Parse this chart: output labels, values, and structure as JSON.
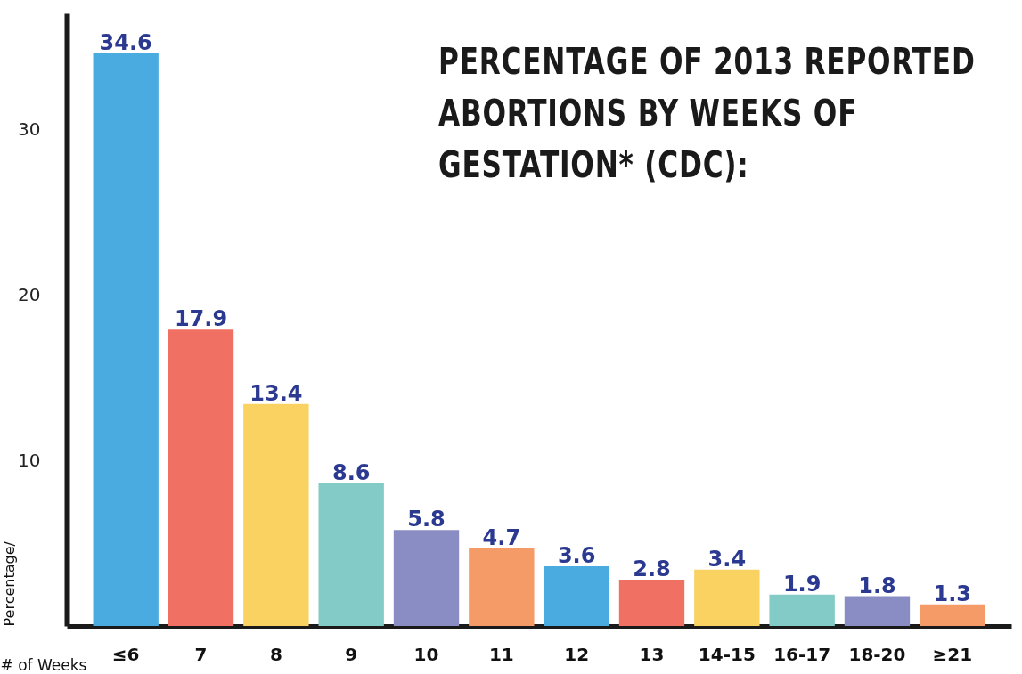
{
  "chart_data": {
    "type": "bar",
    "title": "PERCENTAGE OF 2013 REPORTED ABORTIONS BY WEEKS OF GESTATION* (CDC):",
    "xlabel": "# of Weeks",
    "ylabel": "Percentage/",
    "categories": [
      "≤6",
      "7",
      "8",
      "9",
      "10",
      "11",
      "12",
      "13",
      "14-15",
      "16-17",
      "18-20",
      "≥21"
    ],
    "values": [
      34.6,
      17.9,
      13.4,
      8.6,
      5.8,
      4.7,
      3.6,
      2.8,
      3.4,
      1.9,
      1.8,
      1.3
    ],
    "colors": [
      "#4aabe0",
      "#f07064",
      "#f9d262",
      "#83cbc6",
      "#8a8cc4",
      "#f59b67",
      "#4aabe0",
      "#f07064",
      "#f9d262",
      "#83cbc6",
      "#8a8cc4",
      "#f59b67"
    ],
    "ylim": [
      0,
      37
    ],
    "yticks": [
      10,
      20,
      30
    ],
    "grid": false,
    "data_labels": true
  }
}
